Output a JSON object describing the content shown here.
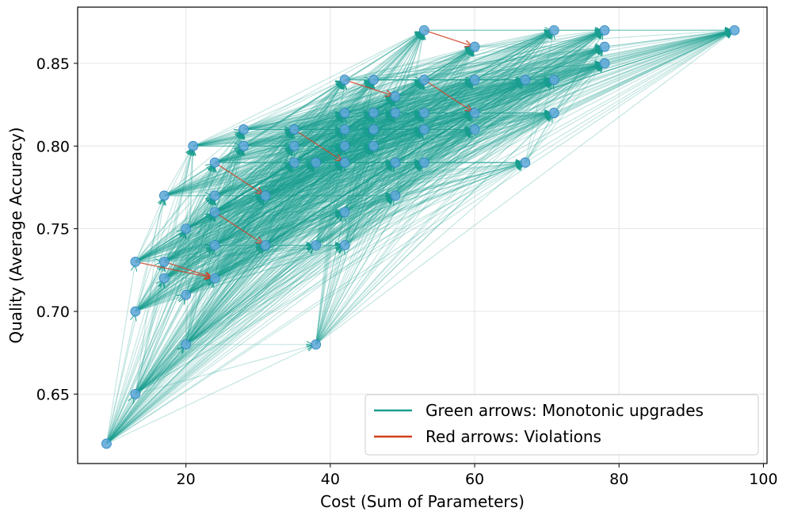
{
  "chart_data": {
    "type": "scatter",
    "xlabel": "Cost (Sum of Parameters)",
    "ylabel": "Quality (Average Accuracy)",
    "xlim": [
      5,
      100.5
    ],
    "ylim": [
      0.608,
      0.884
    ],
    "xticks": [
      20,
      40,
      60,
      80,
      100
    ],
    "yticks": [
      0.65,
      0.7,
      0.75,
      0.8,
      0.85
    ],
    "ytick_labels": [
      "0.65",
      "0.70",
      "0.75",
      "0.80",
      "0.85"
    ],
    "grid": true,
    "legend_position": "lower-right",
    "legend": [
      {
        "label": "Green arrows: Monotonic upgrades",
        "color": "#1a9e8f"
      },
      {
        "label": "Red arrows: Violations",
        "color": "#d43f1e"
      }
    ],
    "colors": {
      "point": "#5aa6d6",
      "point_edge": "#2f86c0",
      "green": "#1a9e8f",
      "red": "#d0432a"
    },
    "points": [
      [
        9,
        0.62
      ],
      [
        13,
        0.65
      ],
      [
        13,
        0.7
      ],
      [
        13,
        0.73
      ],
      [
        17,
        0.72
      ],
      [
        17,
        0.73
      ],
      [
        17,
        0.77
      ],
      [
        20,
        0.68
      ],
      [
        20,
        0.71
      ],
      [
        20,
        0.75
      ],
      [
        21,
        0.8
      ],
      [
        24,
        0.72
      ],
      [
        24,
        0.74
      ],
      [
        24,
        0.76
      ],
      [
        24,
        0.77
      ],
      [
        24,
        0.79
      ],
      [
        28,
        0.8
      ],
      [
        28,
        0.81
      ],
      [
        31,
        0.74
      ],
      [
        31,
        0.77
      ],
      [
        35,
        0.79
      ],
      [
        35,
        0.8
      ],
      [
        35,
        0.81
      ],
      [
        38,
        0.68
      ],
      [
        38,
        0.74
      ],
      [
        38,
        0.79
      ],
      [
        42,
        0.74
      ],
      [
        42,
        0.76
      ],
      [
        42,
        0.79
      ],
      [
        42,
        0.8
      ],
      [
        42,
        0.81
      ],
      [
        42,
        0.82
      ],
      [
        42,
        0.84
      ],
      [
        46,
        0.8
      ],
      [
        46,
        0.81
      ],
      [
        46,
        0.82
      ],
      [
        46,
        0.84
      ],
      [
        49,
        0.77
      ],
      [
        49,
        0.79
      ],
      [
        49,
        0.82
      ],
      [
        49,
        0.83
      ],
      [
        53,
        0.79
      ],
      [
        53,
        0.81
      ],
      [
        53,
        0.82
      ],
      [
        53,
        0.84
      ],
      [
        53,
        0.87
      ],
      [
        60,
        0.81
      ],
      [
        60,
        0.82
      ],
      [
        60,
        0.84
      ],
      [
        60,
        0.86
      ],
      [
        67,
        0.79
      ],
      [
        67,
        0.84
      ],
      [
        71,
        0.82
      ],
      [
        71,
        0.84
      ],
      [
        71,
        0.87
      ],
      [
        78,
        0.85
      ],
      [
        78,
        0.86
      ],
      [
        78,
        0.87
      ],
      [
        96,
        0.87
      ]
    ],
    "red_arrows": [
      [
        [
          13,
          0.73
        ],
        [
          24,
          0.72
        ]
      ],
      [
        [
          17,
          0.73
        ],
        [
          24,
          0.72
        ]
      ],
      [
        [
          24,
          0.79
        ],
        [
          31,
          0.77
        ]
      ],
      [
        [
          24,
          0.76
        ],
        [
          31,
          0.74
        ]
      ],
      [
        [
          35,
          0.81
        ],
        [
          42,
          0.79
        ]
      ],
      [
        [
          42,
          0.84
        ],
        [
          49,
          0.83
        ]
      ],
      [
        [
          53,
          0.84
        ],
        [
          60,
          0.82
        ]
      ],
      [
        [
          53,
          0.87
        ],
        [
          60,
          0.86
        ]
      ]
    ],
    "green_arrows": "all pairs (a,b) where cost_a < cost_b and quality_a <= quality_b"
  }
}
